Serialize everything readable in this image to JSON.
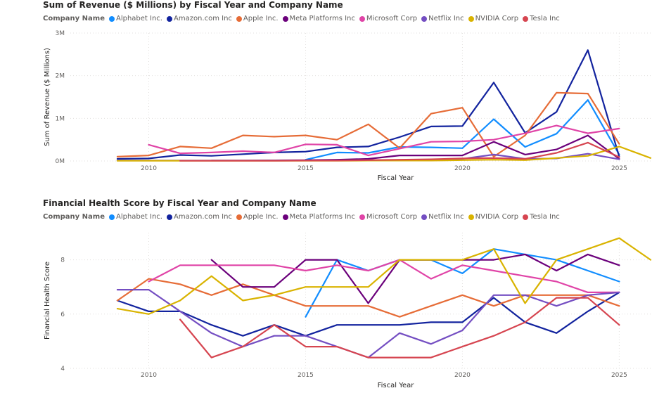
{
  "colors": {
    "Alphabet Inc.": "#118DFF",
    "Amazon.com Inc": "#12239E",
    "Apple Inc.": "#E66C37",
    "Meta Platforms Inc": "#6B007B",
    "Microsoft Corp": "#E044A7",
    "Netflix Inc": "#744EC2",
    "NVIDIA Corp": "#D9B300",
    "Tesla Inc": "#D64550"
  },
  "chart_data": [
    {
      "type": "line",
      "title": "Sum of Revenue ($ Millions) by Fiscal Year and Company Name",
      "legend_title": "Company Name",
      "xlabel": "Fiscal Year",
      "ylabel": "Sum of Revenue ($ Millions)",
      "xlim": [
        2007.5,
        2026
      ],
      "ylim": [
        0,
        3000000
      ],
      "x_ticks": [
        2010,
        2015,
        2020,
        2025
      ],
      "y_ticks": [
        {
          "value": 0,
          "label": "0M"
        },
        {
          "value": 1000000,
          "label": "1M"
        },
        {
          "value": 2000000,
          "label": "2M"
        },
        {
          "value": 3000000,
          "label": "3M"
        }
      ],
      "grid": true,
      "legend_position": "top",
      "series": [
        {
          "name": "Alphabet Inc.",
          "x": [
            2015,
            2016,
            2017,
            2018,
            2019,
            2020,
            2021,
            2022,
            2023,
            2024,
            2025
          ],
          "values": [
            30000,
            200000,
            190000,
            330000,
            320000,
            300000,
            980000,
            330000,
            640000,
            1430000,
            150000
          ]
        },
        {
          "name": "Amazon.com Inc",
          "x": [
            2009,
            2010,
            2011,
            2012,
            2013,
            2014,
            2015,
            2016,
            2017,
            2018,
            2019,
            2020,
            2021,
            2022,
            2023,
            2024,
            2025
          ],
          "values": [
            50000,
            60000,
            140000,
            120000,
            160000,
            200000,
            220000,
            320000,
            340000,
            560000,
            810000,
            820000,
            1840000,
            660000,
            1150000,
            2600000,
            100000
          ]
        },
        {
          "name": "Apple Inc.",
          "x": [
            2009,
            2010,
            2011,
            2012,
            2013,
            2014,
            2015,
            2016,
            2017,
            2018,
            2019,
            2020,
            2021,
            2022,
            2023,
            2024,
            2025
          ],
          "values": [
            100000,
            130000,
            340000,
            300000,
            600000,
            570000,
            600000,
            500000,
            860000,
            300000,
            1110000,
            1250000,
            100000,
            600000,
            1600000,
            1580000,
            400000
          ]
        },
        {
          "name": "Meta Platforms Inc",
          "x": [
            2012,
            2013,
            2014,
            2015,
            2016,
            2017,
            2018,
            2019,
            2020,
            2021,
            2022,
            2023,
            2024,
            2025
          ],
          "values": [
            10000,
            10000,
            15000,
            20000,
            30000,
            50000,
            130000,
            130000,
            130000,
            450000,
            150000,
            270000,
            600000,
            50000
          ]
        },
        {
          "name": "Microsoft Corp",
          "x": [
            2010,
            2011,
            2012,
            2013,
            2014,
            2015,
            2016,
            2017,
            2018,
            2019,
            2020,
            2021,
            2022,
            2023,
            2024,
            2025
          ],
          "values": [
            380000,
            180000,
            200000,
            230000,
            200000,
            390000,
            380000,
            130000,
            290000,
            450000,
            460000,
            500000,
            650000,
            830000,
            650000,
            760000
          ]
        },
        {
          "name": "Netflix Inc",
          "x": [
            2009,
            2010,
            2011,
            2012,
            2013,
            2014,
            2015,
            2016,
            2017,
            2018,
            2019,
            2020,
            2021,
            2022,
            2023,
            2024,
            2025
          ],
          "values": [
            10000,
            10000,
            10000,
            10000,
            10000,
            10000,
            10000,
            10000,
            20000,
            20000,
            30000,
            50000,
            150000,
            50000,
            60000,
            170000,
            40000
          ]
        },
        {
          "name": "NVIDIA Corp",
          "x": [
            2009,
            2010,
            2011,
            2012,
            2013,
            2014,
            2015,
            2016,
            2017,
            2018,
            2019,
            2020,
            2021,
            2022,
            2023,
            2024,
            2025,
            2026
          ],
          "values": [
            5000,
            5000,
            5000,
            5000,
            5000,
            5000,
            5000,
            5000,
            10000,
            10000,
            10000,
            20000,
            30000,
            20000,
            70000,
            120000,
            340000,
            70000
          ]
        },
        {
          "name": "Tesla Inc",
          "x": [
            2011,
            2012,
            2013,
            2014,
            2015,
            2016,
            2017,
            2018,
            2019,
            2020,
            2021,
            2022,
            2023,
            2024,
            2025
          ],
          "values": [
            5000,
            5000,
            5000,
            5000,
            10000,
            10000,
            20000,
            30000,
            40000,
            60000,
            70000,
            50000,
            190000,
            430000,
            90000
          ]
        }
      ]
    },
    {
      "type": "line",
      "title": "Financial Health Score by Fiscal Year and Company Name",
      "legend_title": "Company Name",
      "xlabel": "Fiscal Year",
      "ylabel": "Financial Health Score",
      "xlim": [
        2007.5,
        2026
      ],
      "ylim": [
        4,
        9
      ],
      "x_ticks": [
        2010,
        2015,
        2020,
        2025
      ],
      "y_ticks": [
        {
          "value": 4,
          "label": "4"
        },
        {
          "value": 6,
          "label": "6"
        },
        {
          "value": 8,
          "label": "8"
        }
      ],
      "grid": true,
      "legend_position": "top",
      "series": [
        {
          "name": "Alphabet Inc.",
          "x": [
            2015,
            2016,
            2017,
            2018,
            2019,
            2020,
            2021,
            2022,
            2023,
            2024,
            2025
          ],
          "values": [
            5.9,
            8.0,
            7.6,
            8.0,
            8.0,
            7.5,
            8.4,
            8.2,
            8.0,
            7.6,
            7.2
          ]
        },
        {
          "name": "Amazon.com Inc",
          "x": [
            2009,
            2010,
            2011,
            2012,
            2013,
            2014,
            2015,
            2016,
            2017,
            2018,
            2019,
            2020,
            2021,
            2022,
            2023,
            2024,
            2025
          ],
          "values": [
            6.5,
            6.1,
            6.1,
            5.6,
            5.2,
            5.6,
            5.2,
            5.6,
            5.6,
            5.6,
            5.7,
            5.7,
            6.6,
            5.7,
            5.3,
            6.1,
            6.8
          ]
        },
        {
          "name": "Apple Inc.",
          "x": [
            2009,
            2010,
            2011,
            2012,
            2013,
            2014,
            2015,
            2016,
            2017,
            2018,
            2019,
            2020,
            2021,
            2022,
            2023,
            2024,
            2025
          ],
          "values": [
            6.5,
            7.3,
            7.1,
            6.7,
            7.1,
            6.7,
            6.3,
            6.3,
            6.3,
            5.9,
            6.3,
            6.7,
            6.3,
            6.7,
            6.7,
            6.7,
            6.3
          ]
        },
        {
          "name": "Meta Platforms Inc",
          "x": [
            2012,
            2013,
            2014,
            2015,
            2016,
            2017,
            2018,
            2019,
            2020,
            2021,
            2022,
            2023,
            2024,
            2025
          ],
          "values": [
            8.0,
            7.0,
            7.0,
            8.0,
            8.0,
            6.4,
            8.0,
            8.0,
            8.0,
            8.0,
            8.2,
            7.6,
            8.2,
            7.8
          ]
        },
        {
          "name": "Microsoft Corp",
          "x": [
            2010,
            2011,
            2012,
            2013,
            2014,
            2015,
            2016,
            2017,
            2018,
            2019,
            2020,
            2021,
            2022,
            2023,
            2024,
            2025
          ],
          "values": [
            7.2,
            7.8,
            7.8,
            7.8,
            7.8,
            7.6,
            7.8,
            7.6,
            8.0,
            7.3,
            7.8,
            7.6,
            7.4,
            7.2,
            6.8,
            6.8
          ]
        },
        {
          "name": "Netflix Inc",
          "x": [
            2009,
            2010,
            2011,
            2012,
            2013,
            2014,
            2015,
            2016,
            2017,
            2018,
            2019,
            2020,
            2021,
            2022,
            2023,
            2024,
            2025
          ],
          "values": [
            6.9,
            6.9,
            6.1,
            5.3,
            4.8,
            5.2,
            5.2,
            4.8,
            4.4,
            5.3,
            4.9,
            5.4,
            6.7,
            6.7,
            6.3,
            6.7,
            6.8
          ]
        },
        {
          "name": "NVIDIA Corp",
          "x": [
            2009,
            2010,
            2011,
            2012,
            2013,
            2014,
            2015,
            2016,
            2017,
            2018,
            2019,
            2020,
            2021,
            2022,
            2023,
            2024,
            2025,
            2026
          ],
          "values": [
            6.2,
            6.0,
            6.5,
            7.4,
            6.5,
            6.7,
            7.0,
            7.0,
            7.0,
            8.0,
            8.0,
            8.0,
            8.4,
            6.4,
            8.0,
            8.4,
            8.8,
            8.0
          ]
        },
        {
          "name": "Tesla Inc",
          "x": [
            2011,
            2012,
            2013,
            2014,
            2015,
            2016,
            2017,
            2018,
            2019,
            2020,
            2021,
            2022,
            2023,
            2024,
            2025
          ],
          "values": [
            5.8,
            4.4,
            4.8,
            5.6,
            4.8,
            4.8,
            4.4,
            4.4,
            4.4,
            4.8,
            5.2,
            5.7,
            6.6,
            6.6,
            5.6
          ]
        }
      ]
    }
  ]
}
